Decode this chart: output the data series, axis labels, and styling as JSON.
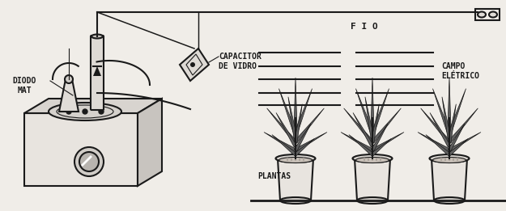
{
  "bg_color": "#f0ede8",
  "line_color": "#1a1a1a",
  "label_diodo": "DIODO\nMAT",
  "label_capacitor": "CAPACITOR\nDE VIDRO",
  "label_fio": "F I O",
  "label_campo": "CAMPO\nELÉTRICO",
  "label_plantas": "PLANTAS",
  "lw": 1.5,
  "thin_lw": 0.8,
  "font_size": 7
}
